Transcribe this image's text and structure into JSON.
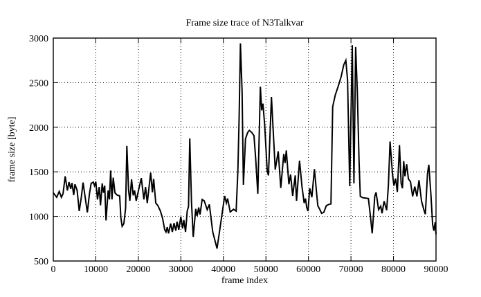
{
  "chart_data": {
    "type": "line",
    "title": "Frame size trace of N3Talkvar",
    "xlabel": "frame index",
    "ylabel": "frame size [byte]",
    "xlim": [
      0,
      90000
    ],
    "ylim": [
      500,
      3000
    ],
    "x_ticks": [
      0,
      10000,
      20000,
      30000,
      40000,
      50000,
      60000,
      70000,
      80000,
      90000
    ],
    "y_ticks": [
      500,
      1000,
      1500,
      2000,
      2500,
      3000
    ],
    "grid": "dotted",
    "legend": "none",
    "line_color": "#000000",
    "background": "#ffffff",
    "series_name": "frame size",
    "points": [
      [
        0,
        1265
      ],
      [
        400,
        1240
      ],
      [
        800,
        1215
      ],
      [
        1400,
        1280
      ],
      [
        1900,
        1215
      ],
      [
        2300,
        1255
      ],
      [
        2800,
        1450
      ],
      [
        3300,
        1290
      ],
      [
        3700,
        1385
      ],
      [
        4100,
        1310
      ],
      [
        4400,
        1375
      ],
      [
        4800,
        1240
      ],
      [
        5100,
        1360
      ],
      [
        5600,
        1295
      ],
      [
        6100,
        1060
      ],
      [
        6600,
        1220
      ],
      [
        7000,
        1380
      ],
      [
        7400,
        1245
      ],
      [
        8000,
        1045
      ],
      [
        8500,
        1250
      ],
      [
        8900,
        1370
      ],
      [
        9400,
        1385
      ],
      [
        9700,
        1345
      ],
      [
        10000,
        1390
      ],
      [
        10400,
        1190
      ],
      [
        10800,
        1330
      ],
      [
        11100,
        1125
      ],
      [
        11500,
        1370
      ],
      [
        11800,
        1265
      ],
      [
        12100,
        1345
      ],
      [
        12400,
        955
      ],
      [
        12900,
        1290
      ],
      [
        13200,
        1190
      ],
      [
        13500,
        1515
      ],
      [
        13800,
        1190
      ],
      [
        14100,
        1435
      ],
      [
        14500,
        1265
      ],
      [
        15000,
        1240
      ],
      [
        15600,
        1230
      ],
      [
        15900,
        980
      ],
      [
        16200,
        890
      ],
      [
        16600,
        920
      ],
      [
        17000,
        1095
      ],
      [
        17300,
        1790
      ],
      [
        17700,
        1290
      ],
      [
        18000,
        1175
      ],
      [
        18400,
        1415
      ],
      [
        18800,
        1235
      ],
      [
        19100,
        1290
      ],
      [
        19500,
        1175
      ],
      [
        20100,
        1305
      ],
      [
        20700,
        1430
      ],
      [
        21300,
        1190
      ],
      [
        21700,
        1330
      ],
      [
        22100,
        1150
      ],
      [
        22900,
        1490
      ],
      [
        23300,
        1270
      ],
      [
        23600,
        1420
      ],
      [
        24100,
        1150
      ],
      [
        24600,
        1120
      ],
      [
        25200,
        1060
      ],
      [
        25700,
        980
      ],
      [
        26200,
        850
      ],
      [
        26500,
        825
      ],
      [
        26800,
        880
      ],
      [
        27100,
        810
      ],
      [
        27600,
        920
      ],
      [
        28000,
        825
      ],
      [
        28400,
        925
      ],
      [
        28800,
        840
      ],
      [
        29100,
        940
      ],
      [
        29500,
        850
      ],
      [
        30000,
        995
      ],
      [
        30400,
        865
      ],
      [
        30700,
        960
      ],
      [
        31100,
        825
      ],
      [
        31500,
        1060
      ],
      [
        31800,
        1110
      ],
      [
        32100,
        1875
      ],
      [
        32500,
        1160
      ],
      [
        32900,
        770
      ],
      [
        33500,
        1085
      ],
      [
        33800,
        1005
      ],
      [
        34200,
        1100
      ],
      [
        34500,
        1020
      ],
      [
        35000,
        1190
      ],
      [
        35500,
        1175
      ],
      [
        36200,
        1075
      ],
      [
        36700,
        1135
      ],
      [
        37500,
        825
      ],
      [
        38500,
        640
      ],
      [
        39500,
        965
      ],
      [
        40300,
        1230
      ],
      [
        40700,
        1150
      ],
      [
        41000,
        1200
      ],
      [
        41600,
        1050
      ],
      [
        42400,
        1080
      ],
      [
        43000,
        1060
      ],
      [
        43400,
        1510
      ],
      [
        43700,
        2100
      ],
      [
        44000,
        2940
      ],
      [
        44400,
        2400
      ],
      [
        44700,
        1355
      ],
      [
        45200,
        1870
      ],
      [
        45700,
        1940
      ],
      [
        46100,
        1965
      ],
      [
        46700,
        1940
      ],
      [
        47200,
        1905
      ],
      [
        47600,
        1640
      ],
      [
        48100,
        1255
      ],
      [
        48700,
        2455
      ],
      [
        49000,
        2190
      ],
      [
        49300,
        2265
      ],
      [
        49700,
        2030
      ],
      [
        50300,
        1510
      ],
      [
        50600,
        1460
      ],
      [
        51300,
        2340
      ],
      [
        52200,
        1525
      ],
      [
        52900,
        1730
      ],
      [
        53500,
        1320
      ],
      [
        54200,
        1700
      ],
      [
        54500,
        1600
      ],
      [
        54800,
        1740
      ],
      [
        55400,
        1360
      ],
      [
        55800,
        1470
      ],
      [
        56300,
        1230
      ],
      [
        56900,
        1460
      ],
      [
        57200,
        1175
      ],
      [
        57900,
        1625
      ],
      [
        58500,
        1330
      ],
      [
        59000,
        1150
      ],
      [
        59300,
        1200
      ],
      [
        59600,
        1100
      ],
      [
        59900,
        1060
      ],
      [
        60300,
        1315
      ],
      [
        60800,
        1215
      ],
      [
        61400,
        1530
      ],
      [
        61900,
        1275
      ],
      [
        62200,
        1120
      ],
      [
        62700,
        1075
      ],
      [
        63100,
        1035
      ],
      [
        63600,
        1045
      ],
      [
        64200,
        1120
      ],
      [
        64800,
        1135
      ],
      [
        65300,
        1140
      ],
      [
        65700,
        2230
      ],
      [
        66300,
        2360
      ],
      [
        67000,
        2460
      ],
      [
        67700,
        2570
      ],
      [
        68300,
        2700
      ],
      [
        68800,
        2750
      ],
      [
        69200,
        2530
      ],
      [
        69700,
        1340
      ],
      [
        70300,
        2920
      ],
      [
        70700,
        1370
      ],
      [
        71100,
        2900
      ],
      [
        71500,
        2400
      ],
      [
        71900,
        1620
      ],
      [
        72200,
        1225
      ],
      [
        72800,
        1210
      ],
      [
        73600,
        1205
      ],
      [
        74100,
        1200
      ],
      [
        74600,
        990
      ],
      [
        75000,
        810
      ],
      [
        75600,
        1225
      ],
      [
        75900,
        1270
      ],
      [
        76500,
        1075
      ],
      [
        77000,
        1115
      ],
      [
        77300,
        1035
      ],
      [
        77800,
        1170
      ],
      [
        78400,
        1070
      ],
      [
        78800,
        1350
      ],
      [
        79200,
        1840
      ],
      [
        79800,
        1460
      ],
      [
        80100,
        1345
      ],
      [
        80500,
        1425
      ],
      [
        80900,
        1275
      ],
      [
        81400,
        1800
      ],
      [
        81800,
        1370
      ],
      [
        82100,
        1315
      ],
      [
        82400,
        1620
      ],
      [
        82700,
        1450
      ],
      [
        83100,
        1585
      ],
      [
        83500,
        1420
      ],
      [
        84000,
        1390
      ],
      [
        84500,
        1225
      ],
      [
        85000,
        1335
      ],
      [
        85500,
        1225
      ],
      [
        86000,
        1405
      ],
      [
        86600,
        1170
      ],
      [
        87200,
        1065
      ],
      [
        87500,
        1025
      ],
      [
        88000,
        1480
      ],
      [
        88300,
        1580
      ],
      [
        88800,
        1250
      ],
      [
        89200,
        910
      ],
      [
        89500,
        840
      ],
      [
        89800,
        935
      ],
      [
        90000,
        800
      ]
    ]
  }
}
